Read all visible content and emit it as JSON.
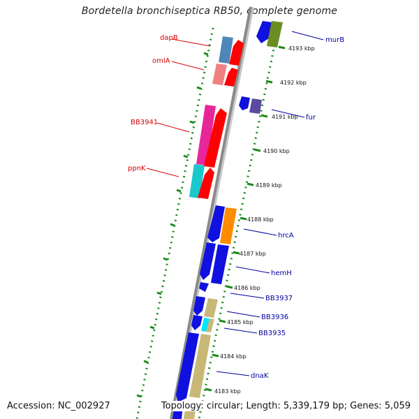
{
  "title": "Bordetella bronchiseptica RB50, complete genome",
  "footer": {
    "accession": "Accession: NC_002927",
    "topology": "Topology: circular; Length: 5,339,179 bp; Genes: 5,059"
  },
  "colors": {
    "backbone": "#8a8a8a",
    "dotted_ring": "#1a8a1a",
    "label_forward": "#d40000",
    "label_reverse": "#0000a0"
  },
  "scale_labels": [
    {
      "text": "4193 kbp"
    },
    {
      "text": "4192 kbp"
    },
    {
      "text": "4191 kbp"
    },
    {
      "text": "4190 kbp"
    },
    {
      "text": "4189 kbp"
    },
    {
      "text": "4188 kbp"
    },
    {
      "text": "4187 kbp"
    },
    {
      "text": "4186 kbp"
    },
    {
      "text": "4185 kbp"
    },
    {
      "text": "4184 kbp"
    },
    {
      "text": "4183 kbp"
    }
  ],
  "gene_labels": {
    "left": [
      "dapB",
      "omlA",
      "BB3941",
      "ppnK"
    ],
    "right": [
      "murB",
      "fur",
      "hrcA",
      "hemH",
      "BB3937",
      "BB3936",
      "BB3935",
      "dnaK"
    ]
  }
}
